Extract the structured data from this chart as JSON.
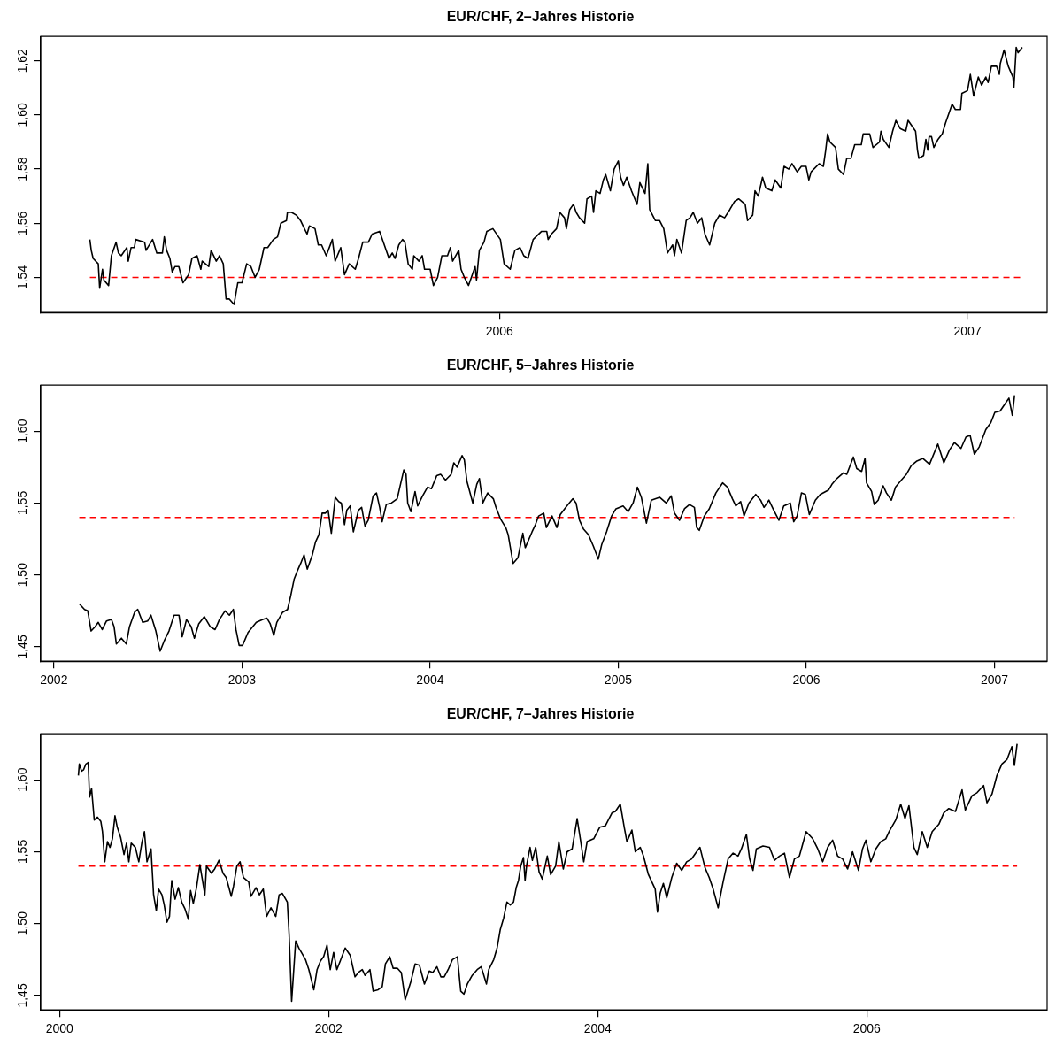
{
  "chart_data": [
    {
      "type": "line",
      "title": "EUR/CHF, 2–Jahres Historie",
      "color": "#000000",
      "marker": "none",
      "line_style": "solid",
      "xlim": [
        2005.02,
        2007.17
      ],
      "ylim": [
        1.527,
        1.629
      ],
      "xticks": [
        2006,
        2007
      ],
      "yticks": [
        {
          "value": 1.54,
          "label": "1,54"
        },
        {
          "value": 1.56,
          "label": "1,56"
        },
        {
          "value": 1.58,
          "label": "1,58"
        },
        {
          "value": 1.6,
          "label": "1,60"
        },
        {
          "value": 1.62,
          "label": "1,62"
        }
      ],
      "ref_lines": [
        {
          "axis": "y",
          "value": 1.54,
          "color": "#ff0000",
          "line_style": "dashed"
        }
      ],
      "x": [
        2005.125,
        2005.128,
        2005.132,
        2005.143,
        2005.146,
        2005.152,
        2005.155,
        2005.165,
        2005.171,
        2005.181,
        2005.186,
        2005.192,
        2005.204,
        2005.207,
        2005.213,
        2005.22,
        2005.223,
        2005.242,
        2005.245,
        2005.259,
        2005.268,
        2005.28,
        2005.284,
        2005.289,
        2005.296,
        2005.301,
        2005.307,
        2005.315,
        2005.324,
        2005.336,
        2005.343,
        2005.354,
        2005.362,
        2005.365,
        2005.379,
        2005.384,
        2005.395,
        2005.402,
        2005.41,
        2005.416,
        2005.423,
        2005.433,
        2005.441,
        2005.45,
        2005.46,
        2005.469,
        2005.478,
        2005.487,
        2005.497,
        2005.505,
        2005.517,
        2005.526,
        2005.533,
        2005.545,
        2005.547,
        2005.556,
        2005.566,
        2005.575,
        2005.589,
        2005.594,
        2005.606,
        2005.613,
        2005.62,
        2005.63,
        2005.643,
        2005.649,
        2005.661,
        2005.669,
        2005.679,
        2005.692,
        2005.699,
        2005.708,
        2005.72,
        2005.728,
        2005.744,
        2005.756,
        2005.764,
        2005.771,
        2005.777,
        2005.785,
        2005.793,
        2005.798,
        2005.805,
        2005.814,
        2005.817,
        2005.828,
        2005.835,
        2005.84,
        2005.852,
        2005.859,
        2005.868,
        2005.877,
        2005.889,
        2005.895,
        2005.9,
        2005.913,
        2005.918,
        2005.925,
        2005.934,
        2005.948,
        2005.951,
        2005.957,
        2005.967,
        2005.973,
        2005.986,
        2006.002,
        2006.01,
        2006.023,
        2006.03,
        2006.033,
        2006.044,
        2006.052,
        2006.061,
        2006.072,
        2006.09,
        2006.101,
        2006.104,
        2006.111,
        2006.122,
        2006.129,
        2006.139,
        2006.143,
        2006.15,
        2006.158,
        2006.164,
        2006.171,
        2006.182,
        2006.187,
        2006.197,
        2006.201,
        2006.206,
        2006.215,
        2006.222,
        2006.227,
        2006.237,
        2006.245,
        2006.254,
        2006.259,
        2006.265,
        2006.272,
        2006.282,
        2006.294,
        2006.3,
        2006.311,
        2006.317,
        2006.321,
        2006.333,
        2006.342,
        2006.351,
        2006.359,
        2006.37,
        2006.374,
        2006.379,
        2006.389,
        2006.399,
        2006.407,
        2006.414,
        2006.423,
        2006.432,
        2006.439,
        2006.449,
        2006.46,
        2006.47,
        2006.481,
        2006.492,
        2006.502,
        2006.511,
        2006.525,
        2006.53,
        2006.541,
        2006.546,
        2006.553,
        2006.562,
        2006.569,
        2006.582,
        2006.589,
        2006.601,
        2006.608,
        2006.618,
        2006.625,
        2006.636,
        2006.645,
        2006.655,
        2006.661,
        2006.666,
        2006.683,
        2006.692,
        2006.697,
        2006.701,
        2006.706,
        2006.718,
        2006.724,
        2006.735,
        2006.742,
        2006.751,
        2006.759,
        2006.773,
        2006.777,
        2006.791,
        2006.798,
        2006.812,
        2006.815,
        2006.82,
        2006.832,
        2006.84,
        2006.847,
        2006.856,
        2006.868,
        2006.873,
        2006.889,
        2006.893,
        2006.896,
        2006.906,
        2006.911,
        2006.915,
        2006.918,
        2006.923,
        2006.928,
        2006.937,
        2006.946,
        2006.953,
        2006.967,
        2006.974,
        2006.985,
        2006.988,
        2007.0,
        2007.006,
        2007.013,
        2007.023,
        2007.03,
        2007.039,
        2007.044,
        2007.051,
        2007.062,
        2007.068,
        2007.07,
        2007.078,
        2007.087,
        2007.097,
        2007.099,
        2007.104,
        2007.108,
        2007.117
      ],
      "values": [
        1.554,
        1.55,
        1.547,
        1.545,
        1.536,
        1.543,
        1.539,
        1.537,
        1.548,
        1.553,
        1.549,
        1.548,
        1.551,
        1.546,
        1.551,
        1.551,
        1.554,
        1.553,
        1.55,
        1.554,
        1.549,
        1.549,
        1.555,
        1.55,
        1.547,
        1.542,
        1.544,
        1.544,
        1.538,
        1.541,
        1.547,
        1.548,
        1.543,
        1.546,
        1.544,
        1.55,
        1.546,
        1.548,
        1.545,
        1.532,
        1.532,
        1.53,
        1.538,
        1.538,
        1.545,
        1.544,
        1.54,
        1.543,
        1.551,
        1.551,
        1.554,
        1.555,
        1.56,
        1.561,
        1.564,
        1.564,
        1.563,
        1.561,
        1.556,
        1.559,
        1.558,
        1.552,
        1.552,
        1.548,
        1.554,
        1.546,
        1.551,
        1.541,
        1.545,
        1.543,
        1.547,
        1.553,
        1.553,
        1.556,
        1.557,
        1.551,
        1.547,
        1.549,
        1.547,
        1.552,
        1.554,
        1.553,
        1.545,
        1.543,
        1.548,
        1.546,
        1.548,
        1.543,
        1.543,
        1.537,
        1.54,
        1.548,
        1.548,
        1.551,
        1.546,
        1.55,
        1.543,
        1.54,
        1.537,
        1.544,
        1.539,
        1.55,
        1.553,
        1.557,
        1.558,
        1.554,
        1.545,
        1.543,
        1.548,
        1.55,
        1.551,
        1.548,
        1.547,
        1.554,
        1.557,
        1.557,
        1.554,
        1.556,
        1.558,
        1.564,
        1.562,
        1.558,
        1.565,
        1.567,
        1.564,
        1.562,
        1.56,
        1.569,
        1.57,
        1.564,
        1.572,
        1.571,
        1.576,
        1.578,
        1.572,
        1.58,
        1.583,
        1.577,
        1.574,
        1.577,
        1.572,
        1.567,
        1.575,
        1.571,
        1.582,
        1.565,
        1.561,
        1.561,
        1.558,
        1.549,
        1.552,
        1.548,
        1.554,
        1.549,
        1.561,
        1.562,
        1.564,
        1.56,
        1.562,
        1.556,
        1.552,
        1.56,
        1.563,
        1.562,
        1.565,
        1.568,
        1.569,
        1.567,
        1.561,
        1.563,
        1.572,
        1.57,
        1.577,
        1.573,
        1.572,
        1.576,
        1.573,
        1.581,
        1.58,
        1.582,
        1.579,
        1.581,
        1.581,
        1.576,
        1.579,
        1.582,
        1.581,
        1.587,
        1.593,
        1.59,
        1.588,
        1.58,
        1.578,
        1.584,
        1.584,
        1.589,
        1.589,
        1.593,
        1.593,
        1.588,
        1.59,
        1.594,
        1.591,
        1.588,
        1.594,
        1.598,
        1.595,
        1.594,
        1.598,
        1.594,
        1.587,
        1.584,
        1.585,
        1.591,
        1.587,
        1.592,
        1.592,
        1.588,
        1.591,
        1.593,
        1.597,
        1.604,
        1.602,
        1.602,
        1.608,
        1.609,
        1.615,
        1.607,
        1.614,
        1.611,
        1.614,
        1.612,
        1.618,
        1.618,
        1.615,
        1.619,
        1.624,
        1.618,
        1.614,
        1.61,
        1.625,
        1.623,
        1.625
      ]
    },
    {
      "type": "line",
      "title": "EUR/CHF, 5–Jahres Historie",
      "color": "#000000",
      "marker": "none",
      "line_style": "solid",
      "xlim": [
        2001.93,
        2007.28
      ],
      "ylim": [
        1.44,
        1.632
      ],
      "xticks": [
        2002,
        2003,
        2004,
        2005,
        2006,
        2007
      ],
      "yticks": [
        {
          "value": 1.45,
          "label": "1,45"
        },
        {
          "value": 1.5,
          "label": "1,50"
        },
        {
          "value": 1.55,
          "label": "1,55"
        },
        {
          "value": 1.6,
          "label": "1,60"
        }
      ],
      "ref_lines": [
        {
          "axis": "y",
          "value": 1.54,
          "color": "#ff0000",
          "line_style": "dashed"
        }
      ],
      "x": [
        2002.135,
        2002.149,
        2002.163,
        2002.18,
        2002.198,
        2002.219,
        2002.236,
        2002.257,
        2002.28,
        2002.306,
        2002.32,
        2002.332,
        2002.359,
        2002.385,
        2002.402,
        2002.429,
        2002.446,
        2002.472,
        2002.499,
        2002.516,
        2002.542,
        2002.565,
        2002.586,
        2002.612,
        2002.639,
        2002.665,
        2002.682,
        2002.705,
        2002.73,
        2002.747,
        2002.77,
        2002.8,
        2002.831,
        2002.857,
        2002.88,
        2002.91,
        2002.933,
        2002.954,
        2002.968,
        2002.985,
        2003.003,
        2003.032,
        2003.076,
        2003.111,
        2003.132,
        2003.15,
        2003.169,
        2003.185,
        2003.216,
        2003.242,
        2003.26,
        2003.277,
        2003.295,
        2003.312,
        2003.33,
        2003.347,
        2003.374,
        2003.391,
        2003.409,
        2003.426,
        2003.444,
        2003.458,
        2003.475,
        2003.496,
        2003.514,
        2003.528,
        2003.545,
        2003.557,
        2003.575,
        2003.592,
        2003.619,
        2003.636,
        2003.654,
        2003.671,
        2003.697,
        2003.715,
        2003.732,
        2003.745,
        2003.767,
        2003.794,
        2003.825,
        2003.846,
        2003.86,
        2003.872,
        2003.881,
        2003.898,
        2003.92,
        2003.934,
        2003.96,
        2003.986,
        2004.007,
        2004.035,
        2004.056,
        2004.082,
        2004.112,
        2004.126,
        2004.143,
        2004.17,
        2004.182,
        2004.196,
        2004.227,
        2004.248,
        2004.262,
        2004.28,
        2004.306,
        2004.336,
        2004.35,
        2004.374,
        2004.402,
        2004.415,
        2004.441,
        2004.467,
        2004.493,
        2004.506,
        2004.542,
        2004.56,
        2004.577,
        2004.604,
        2004.618,
        2004.648,
        2004.674,
        2004.692,
        2004.727,
        2004.759,
        2004.776,
        2004.794,
        2004.815,
        2004.842,
        2004.868,
        2004.894,
        2004.912,
        2004.938,
        2004.965,
        2004.988,
        2005.026,
        2005.053,
        2005.079,
        2005.102,
        2005.123,
        2005.15,
        2005.176,
        2005.22,
        2005.255,
        2005.282,
        2005.299,
        2005.326,
        2005.352,
        2005.379,
        2005.405,
        2005.417,
        2005.431,
        2005.458,
        2005.484,
        2005.519,
        2005.555,
        2005.581,
        2005.607,
        2005.625,
        2005.651,
        2005.669,
        2005.695,
        2005.731,
        2005.757,
        2005.775,
        2005.801,
        2005.827,
        2005.854,
        2005.88,
        2005.915,
        2005.933,
        2005.951,
        2005.974,
        2005.995,
        2006.016,
        2006.048,
        2006.074,
        2006.118,
        2006.136,
        2006.162,
        2006.197,
        2006.215,
        2006.25,
        2006.268,
        2006.294,
        2006.312,
        2006.32,
        2006.347,
        2006.361,
        2006.382,
        2006.408,
        2006.426,
        2006.452,
        2006.474,
        2006.505,
        2006.532,
        2006.558,
        2006.585,
        2006.62,
        2006.655,
        2006.699,
        2006.731,
        2006.761,
        2006.787,
        2006.822,
        2006.849,
        2006.871,
        2006.893,
        2006.919,
        2006.954,
        2006.981,
        2007.002,
        2007.03,
        2007.051,
        2007.077,
        2007.095,
        2007.107
      ],
      "values": [
        1.48,
        1.478,
        1.476,
        1.475,
        1.461,
        1.464,
        1.467,
        1.462,
        1.468,
        1.469,
        1.464,
        1.452,
        1.456,
        1.452,
        1.464,
        1.474,
        1.476,
        1.467,
        1.468,
        1.472,
        1.461,
        1.447,
        1.454,
        1.461,
        1.472,
        1.472,
        1.457,
        1.469,
        1.464,
        1.456,
        1.466,
        1.471,
        1.464,
        1.462,
        1.469,
        1.475,
        1.472,
        1.476,
        1.462,
        1.451,
        1.451,
        1.46,
        1.467,
        1.469,
        1.47,
        1.466,
        1.458,
        1.467,
        1.474,
        1.476,
        1.486,
        1.497,
        1.503,
        1.508,
        1.514,
        1.504,
        1.514,
        1.523,
        1.528,
        1.543,
        1.543,
        1.545,
        1.529,
        1.554,
        1.551,
        1.55,
        1.535,
        1.545,
        1.548,
        1.53,
        1.545,
        1.547,
        1.534,
        1.538,
        1.555,
        1.557,
        1.547,
        1.537,
        1.549,
        1.55,
        1.553,
        1.565,
        1.573,
        1.57,
        1.55,
        1.544,
        1.558,
        1.548,
        1.555,
        1.561,
        1.56,
        1.569,
        1.57,
        1.566,
        1.57,
        1.578,
        1.575,
        1.583,
        1.58,
        1.565,
        1.55,
        1.563,
        1.567,
        1.55,
        1.557,
        1.553,
        1.547,
        1.539,
        1.533,
        1.528,
        1.508,
        1.512,
        1.529,
        1.519,
        1.53,
        1.535,
        1.541,
        1.543,
        1.533,
        1.541,
        1.533,
        1.542,
        1.548,
        1.553,
        1.55,
        1.538,
        1.532,
        1.528,
        1.52,
        1.511,
        1.521,
        1.53,
        1.541,
        1.546,
        1.548,
        1.544,
        1.55,
        1.561,
        1.554,
        1.536,
        1.552,
        1.554,
        1.55,
        1.555,
        1.543,
        1.538,
        1.546,
        1.549,
        1.547,
        1.533,
        1.531,
        1.541,
        1.546,
        1.557,
        1.564,
        1.561,
        1.553,
        1.548,
        1.551,
        1.541,
        1.55,
        1.556,
        1.552,
        1.547,
        1.552,
        1.545,
        1.538,
        1.548,
        1.55,
        1.537,
        1.541,
        1.557,
        1.556,
        1.542,
        1.552,
        1.556,
        1.559,
        1.563,
        1.567,
        1.571,
        1.57,
        1.582,
        1.574,
        1.572,
        1.581,
        1.564,
        1.558,
        1.549,
        1.552,
        1.562,
        1.557,
        1.552,
        1.561,
        1.566,
        1.57,
        1.576,
        1.579,
        1.581,
        1.577,
        1.591,
        1.578,
        1.587,
        1.592,
        1.588,
        1.596,
        1.597,
        1.584,
        1.589,
        1.601,
        1.606,
        1.613,
        1.614,
        1.618,
        1.623,
        1.611,
        1.625
      ]
    },
    {
      "type": "line",
      "title": "EUR/CHF, 7–Jahres Historie",
      "color": "#000000",
      "marker": "none",
      "line_style": "solid",
      "xlim": [
        1999.86,
        2007.34
      ],
      "ylim": [
        1.44,
        1.632
      ],
      "xticks": [
        2000,
        2002,
        2004,
        2006
      ],
      "yticks": [
        {
          "value": 1.45,
          "label": "1,45"
        },
        {
          "value": 1.5,
          "label": "1,50"
        },
        {
          "value": 1.55,
          "label": "1,55"
        },
        {
          "value": 1.6,
          "label": "1,60"
        }
      ],
      "ref_lines": [
        {
          "axis": "y",
          "value": 1.54,
          "color": "#ff0000",
          "line_style": "dashed"
        }
      ],
      "x": [
        2000.14,
        2000.147,
        2000.164,
        2000.179,
        2000.196,
        2000.213,
        2000.223,
        2000.238,
        2000.258,
        2000.282,
        2000.307,
        2000.319,
        2000.336,
        2000.356,
        2000.375,
        2000.393,
        2000.412,
        2000.429,
        2000.454,
        2000.479,
        2000.498,
        2000.515,
        2000.533,
        2000.564,
        2000.589,
        2000.613,
        2000.631,
        2000.65,
        2000.68,
        2000.699,
        2000.719,
        2000.736,
        2000.761,
        2000.778,
        2000.798,
        2000.817,
        2000.834,
        2000.859,
        2000.883,
        2000.908,
        2000.933,
        2000.957,
        2000.974,
        2000.994,
        2001.018,
        2001.043,
        2001.08,
        2001.092,
        2001.129,
        2001.153,
        2001.185,
        2001.215,
        2001.239,
        2001.276,
        2001.293,
        2001.318,
        2001.342,
        2001.367,
        2001.406,
        2001.423,
        2001.46,
        2001.485,
        2001.514,
        2001.539,
        2001.571,
        2001.607,
        2001.632,
        2001.656,
        2001.693,
        2001.706,
        2001.725,
        2001.755,
        2001.779,
        2001.804,
        2001.828,
        2001.853,
        2001.89,
        2001.914,
        2001.939,
        2001.963,
        2001.988,
        2002.012,
        2002.037,
        2002.061,
        2002.086,
        2002.123,
        2002.16,
        2002.196,
        2002.221,
        2002.25,
        2002.27,
        2002.307,
        2002.331,
        2002.368,
        2002.398,
        2002.422,
        2002.454,
        2002.479,
        2002.51,
        2002.54,
        2002.569,
        2002.609,
        2002.643,
        2002.675,
        2002.712,
        2002.748,
        2002.773,
        2002.805,
        2002.834,
        2002.859,
        2002.888,
        2002.92,
        2002.957,
        2002.982,
        2003.006,
        2003.031,
        2003.067,
        2003.104,
        2003.134,
        2003.173,
        2003.19,
        2003.227,
        2003.252,
        2003.276,
        2003.301,
        2003.325,
        2003.35,
        2003.374,
        2003.394,
        2003.411,
        2003.428,
        2003.448,
        2003.46,
        2003.472,
        2003.497,
        2003.514,
        2003.539,
        2003.564,
        2003.588,
        2003.625,
        2003.65,
        2003.687,
        2003.711,
        2003.744,
        2003.773,
        2003.81,
        2003.847,
        2003.872,
        2003.896,
        2003.921,
        2003.97,
        2004.015,
        2004.057,
        2004.106,
        2004.131,
        2004.168,
        2004.197,
        2004.217,
        2004.254,
        2004.279,
        2004.316,
        2004.34,
        2004.377,
        2004.427,
        2004.444,
        2004.464,
        2004.488,
        2004.513,
        2004.55,
        2004.587,
        2004.624,
        2004.661,
        2004.698,
        2004.735,
        2004.76,
        2004.797,
        2004.829,
        2004.858,
        2004.895,
        2004.932,
        2004.969,
        2005.006,
        2005.043,
        2005.068,
        2005.105,
        2005.129,
        2005.154,
        2005.179,
        2005.228,
        2005.277,
        2005.314,
        2005.351,
        2005.388,
        2005.425,
        2005.462,
        2005.499,
        2005.549,
        2005.598,
        2005.635,
        2005.672,
        2005.709,
        2005.746,
        2005.783,
        2005.82,
        2005.857,
        2005.894,
        2005.938,
        2005.968,
        2005.993,
        2006.03,
        2006.067,
        2006.104,
        2006.141,
        2006.166,
        2006.215,
        2006.252,
        2006.284,
        2006.313,
        2006.35,
        2006.375,
        2006.412,
        2006.449,
        2006.486,
        2006.535,
        2006.572,
        2006.609,
        2006.659,
        2006.708,
        2006.732,
        2006.782,
        2006.819,
        2006.868,
        2006.893,
        2006.93,
        2006.967,
        2007.004,
        2007.041,
        2007.078,
        2007.097,
        2007.117
      ],
      "values": [
        1.603,
        1.611,
        1.606,
        1.607,
        1.611,
        1.612,
        1.588,
        1.594,
        1.572,
        1.574,
        1.571,
        1.564,
        1.543,
        1.557,
        1.553,
        1.559,
        1.575,
        1.567,
        1.56,
        1.548,
        1.556,
        1.543,
        1.556,
        1.553,
        1.543,
        1.557,
        1.564,
        1.543,
        1.552,
        1.52,
        1.509,
        1.524,
        1.52,
        1.513,
        1.501,
        1.505,
        1.53,
        1.517,
        1.525,
        1.515,
        1.51,
        1.503,
        1.523,
        1.514,
        1.525,
        1.541,
        1.52,
        1.54,
        1.535,
        1.538,
        1.544,
        1.535,
        1.532,
        1.519,
        1.526,
        1.54,
        1.543,
        1.532,
        1.529,
        1.519,
        1.525,
        1.52,
        1.524,
        1.505,
        1.511,
        1.505,
        1.52,
        1.521,
        1.515,
        1.493,
        1.446,
        1.488,
        1.483,
        1.479,
        1.475,
        1.468,
        1.454,
        1.468,
        1.474,
        1.477,
        1.485,
        1.468,
        1.48,
        1.468,
        1.474,
        1.483,
        1.478,
        1.463,
        1.466,
        1.468,
        1.464,
        1.468,
        1.453,
        1.454,
        1.456,
        1.472,
        1.477,
        1.469,
        1.469,
        1.466,
        1.447,
        1.459,
        1.472,
        1.471,
        1.458,
        1.467,
        1.466,
        1.47,
        1.463,
        1.463,
        1.468,
        1.475,
        1.477,
        1.453,
        1.451,
        1.458,
        1.464,
        1.468,
        1.47,
        1.458,
        1.468,
        1.475,
        1.483,
        1.496,
        1.504,
        1.515,
        1.513,
        1.515,
        1.525,
        1.53,
        1.54,
        1.546,
        1.53,
        1.541,
        1.553,
        1.544,
        1.553,
        1.536,
        1.531,
        1.547,
        1.534,
        1.54,
        1.557,
        1.538,
        1.55,
        1.552,
        1.573,
        1.558,
        1.543,
        1.557,
        1.559,
        1.567,
        1.568,
        1.577,
        1.578,
        1.583,
        1.567,
        1.557,
        1.565,
        1.55,
        1.553,
        1.547,
        1.534,
        1.524,
        1.508,
        1.521,
        1.528,
        1.518,
        1.532,
        1.542,
        1.537,
        1.543,
        1.545,
        1.55,
        1.553,
        1.539,
        1.532,
        1.524,
        1.511,
        1.529,
        1.545,
        1.549,
        1.547,
        1.552,
        1.562,
        1.545,
        1.537,
        1.552,
        1.554,
        1.553,
        1.544,
        1.547,
        1.549,
        1.532,
        1.545,
        1.547,
        1.564,
        1.559,
        1.552,
        1.543,
        1.553,
        1.558,
        1.547,
        1.545,
        1.538,
        1.55,
        1.537,
        1.552,
        1.558,
        1.543,
        1.552,
        1.557,
        1.559,
        1.564,
        1.572,
        1.583,
        1.573,
        1.582,
        1.553,
        1.548,
        1.564,
        1.553,
        1.564,
        1.569,
        1.577,
        1.58,
        1.578,
        1.593,
        1.579,
        1.589,
        1.591,
        1.596,
        1.584,
        1.59,
        1.603,
        1.611,
        1.614,
        1.623,
        1.61,
        1.625
      ]
    }
  ]
}
